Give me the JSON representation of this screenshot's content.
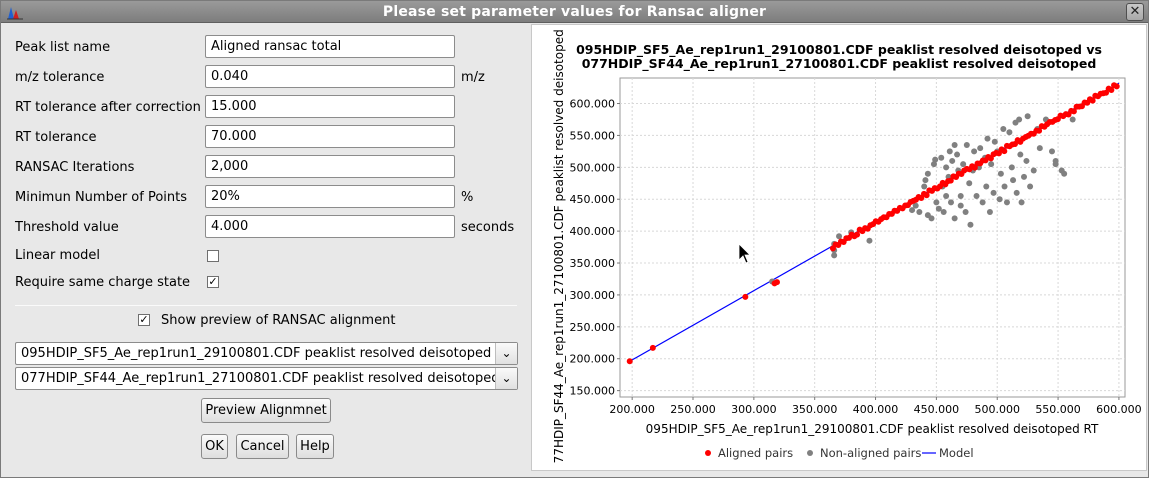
{
  "window": {
    "title": "Please set parameter values for Ransac aligner",
    "close_glyph": "✕",
    "icon": "mzmine-chart-icon"
  },
  "params": {
    "peak_list_name": {
      "label": "Peak list name",
      "value": "Aligned ransac total"
    },
    "mz_tolerance": {
      "label": "m/z tolerance",
      "value": "0.040",
      "unit": "m/z"
    },
    "rt_after": {
      "label": "RT tolerance after correction",
      "value": "15.000"
    },
    "rt_tolerance": {
      "label": "RT tolerance",
      "value": "70.000"
    },
    "ransac_iter": {
      "label": "RANSAC Iterations",
      "value": "2,000"
    },
    "min_points": {
      "label": "Minimun Number of Points",
      "value": "20%",
      "unit": "%"
    },
    "threshold": {
      "label": "Threshold value",
      "value": "4.000",
      "unit": "seconds"
    },
    "linear_model": {
      "label": "Linear model",
      "checked": false
    },
    "same_charge": {
      "label": "Require same charge state",
      "checked": true,
      "check_glyph": "✓"
    }
  },
  "preview": {
    "label": "Show preview of RANSAC alignment",
    "checked": true,
    "check_glyph": "✓",
    "combo1": "095HDIP_SF5_Ae_rep1run1_29100801.CDF peaklist resolved deisotoped",
    "combo2": "077HDIP_SF44_Ae_rep1run1_27100801.CDF peaklist resolved deisotoped",
    "combo_arrow": "⌄",
    "preview_button": "Preview Alignmnet"
  },
  "buttons": {
    "ok": "OK",
    "cancel": "Cancel",
    "help": "Help"
  },
  "chart_data": {
    "type": "scatter",
    "title_line1": "095HDIP_SF5_Ae_rep1run1_29100801.CDF peaklist resolved deisotoped vs",
    "title_line2": "077HDIP_SF44_Ae_rep1run1_27100801.CDF peaklist resolved deisotoped",
    "xlabel": "095HDIP_SF5_Ae_rep1run1_29100801.CDF peaklist resolved deisotoped RT",
    "ylabel": "77HDIP_SF44_Ae_rep1run1_27100801.CDF peaklist resolved deisotoped RT",
    "xlim": [
      190,
      605
    ],
    "ylim": [
      140,
      640
    ],
    "x_ticks": [
      "200.000",
      "250.000",
      "300.000",
      "350.000",
      "400.000",
      "450.000",
      "500.000",
      "550.000",
      "600.000"
    ],
    "x_tick_values": [
      200,
      250,
      300,
      350,
      400,
      450,
      500,
      550,
      600
    ],
    "y_ticks": [
      "150.000",
      "200.000",
      "250.000",
      "300.000",
      "350.000",
      "400.000",
      "450.000",
      "500.000",
      "550.000",
      "600.000"
    ],
    "y_tick_values": [
      150,
      200,
      250,
      300,
      350,
      400,
      450,
      500,
      550,
      600
    ],
    "grid": true,
    "legend": [
      {
        "name": "Aligned pairs",
        "color": "#ff0000",
        "shape": "dot"
      },
      {
        "name": "Non-aligned pairs",
        "color": "#808080",
        "shape": "dot"
      },
      {
        "name": "Model",
        "color": "#0000ff",
        "shape": "line"
      }
    ],
    "model_line": {
      "x": [
        198,
        600
      ],
      "y": [
        196,
        632
      ]
    },
    "aligned_x_range": [
      365,
      600
    ],
    "aligned_isolated": [
      {
        "x": 198,
        "y": 196
      },
      {
        "x": 217,
        "y": 217
      },
      {
        "x": 293,
        "y": 297
      },
      {
        "x": 317,
        "y": 318
      },
      {
        "x": 319,
        "y": 320
      }
    ],
    "non_aligned": [
      {
        "x": 315,
        "y": 321
      },
      {
        "x": 366,
        "y": 362
      },
      {
        "x": 366,
        "y": 370
      },
      {
        "x": 366,
        "y": 380
      },
      {
        "x": 370,
        "y": 392
      },
      {
        "x": 380,
        "y": 398
      },
      {
        "x": 395,
        "y": 385
      },
      {
        "x": 430,
        "y": 433
      },
      {
        "x": 433,
        "y": 440
      },
      {
        "x": 436,
        "y": 430
      },
      {
        "x": 440,
        "y": 470
      },
      {
        "x": 441,
        "y": 480
      },
      {
        "x": 443,
        "y": 490
      },
      {
        "x": 443,
        "y": 425
      },
      {
        "x": 446,
        "y": 420
      },
      {
        "x": 448,
        "y": 505
      },
      {
        "x": 449,
        "y": 512
      },
      {
        "x": 450,
        "y": 445
      },
      {
        "x": 452,
        "y": 435
      },
      {
        "x": 454,
        "y": 515
      },
      {
        "x": 455,
        "y": 470
      },
      {
        "x": 456,
        "y": 430
      },
      {
        "x": 458,
        "y": 500
      },
      {
        "x": 458,
        "y": 455
      },
      {
        "x": 460,
        "y": 485
      },
      {
        "x": 461,
        "y": 525
      },
      {
        "x": 462,
        "y": 445
      },
      {
        "x": 463,
        "y": 510
      },
      {
        "x": 465,
        "y": 535
      },
      {
        "x": 465,
        "y": 420
      },
      {
        "x": 467,
        "y": 520
      },
      {
        "x": 468,
        "y": 495
      },
      {
        "x": 470,
        "y": 455
      },
      {
        "x": 470,
        "y": 440
      },
      {
        "x": 472,
        "y": 505
      },
      {
        "x": 474,
        "y": 430
      },
      {
        "x": 475,
        "y": 535
      },
      {
        "x": 477,
        "y": 475
      },
      {
        "x": 478,
        "y": 410
      },
      {
        "x": 480,
        "y": 495
      },
      {
        "x": 481,
        "y": 525
      },
      {
        "x": 483,
        "y": 455
      },
      {
        "x": 485,
        "y": 500
      },
      {
        "x": 486,
        "y": 530
      },
      {
        "x": 488,
        "y": 445
      },
      {
        "x": 490,
        "y": 515
      },
      {
        "x": 491,
        "y": 470
      },
      {
        "x": 492,
        "y": 545
      },
      {
        "x": 494,
        "y": 430
      },
      {
        "x": 495,
        "y": 505
      },
      {
        "x": 497,
        "y": 460
      },
      {
        "x": 498,
        "y": 540
      },
      {
        "x": 500,
        "y": 525
      },
      {
        "x": 502,
        "y": 450
      },
      {
        "x": 503,
        "y": 490
      },
      {
        "x": 505,
        "y": 560
      },
      {
        "x": 506,
        "y": 470
      },
      {
        "x": 508,
        "y": 445
      },
      {
        "x": 510,
        "y": 555
      },
      {
        "x": 512,
        "y": 500
      },
      {
        "x": 513,
        "y": 480
      },
      {
        "x": 515,
        "y": 570
      },
      {
        "x": 516,
        "y": 460
      },
      {
        "x": 518,
        "y": 575
      },
      {
        "x": 519,
        "y": 520
      },
      {
        "x": 520,
        "y": 445
      },
      {
        "x": 522,
        "y": 485
      },
      {
        "x": 524,
        "y": 510
      },
      {
        "x": 525,
        "y": 580
      },
      {
        "x": 527,
        "y": 470
      },
      {
        "x": 530,
        "y": 495
      },
      {
        "x": 533,
        "y": 560
      },
      {
        "x": 535,
        "y": 530
      },
      {
        "x": 540,
        "y": 575
      },
      {
        "x": 545,
        "y": 525
      },
      {
        "x": 548,
        "y": 505
      },
      {
        "x": 555,
        "y": 490
      },
      {
        "x": 553,
        "y": 495
      },
      {
        "x": 548,
        "y": 510
      },
      {
        "x": 562,
        "y": 575
      }
    ]
  }
}
